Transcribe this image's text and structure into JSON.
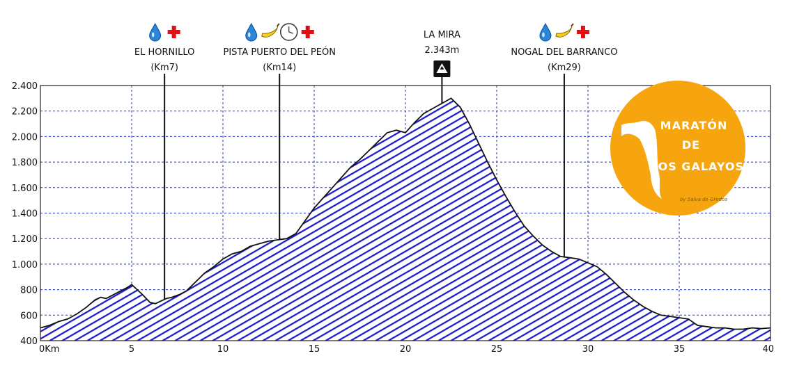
{
  "chart_data": {
    "type": "area",
    "title": "",
    "xlabel": "",
    "ylabel": "",
    "xlim": [
      0,
      40
    ],
    "ylim": [
      400,
      2400
    ],
    "grid": true,
    "x_ticks": [
      0,
      5,
      10,
      15,
      20,
      25,
      30,
      35,
      40
    ],
    "x_tick_labels": [
      "0Km",
      "5",
      "10",
      "15",
      "20",
      "25",
      "30",
      "35",
      "40"
    ],
    "y_ticks": [
      400,
      600,
      800,
      1000,
      1200,
      1400,
      1600,
      1800,
      2000,
      2200,
      2400
    ],
    "y_tick_labels": [
      "400",
      "600",
      "800",
      "1.000",
      "1.200",
      "1.400",
      "1.600",
      "1.800",
      "2.000",
      "2.200",
      "2.400"
    ],
    "fill_color": "#1a1acc",
    "series": [
      {
        "x": [
          0,
          0.5,
          1,
          1.5,
          2,
          2.5,
          3,
          3.3,
          3.6,
          4,
          4.4,
          4.8,
          5,
          5.3,
          5.6,
          6,
          6.3,
          6.6,
          6.9,
          7.2,
          7.6,
          8,
          8.5,
          9,
          9.5,
          10,
          10.5,
          11,
          11.5,
          12,
          12.5,
          13,
          13.5,
          14,
          14.5,
          15,
          15.5,
          16,
          16.5,
          17,
          17.5,
          18,
          18.5,
          19,
          19.5,
          20,
          20.5,
          21,
          21.5,
          22,
          22.5,
          23,
          23.5,
          24,
          24.5,
          25,
          25.5,
          26,
          26.5,
          27,
          27.5,
          28,
          28.5,
          29,
          29.5,
          30,
          30.5,
          31,
          31.5,
          32,
          32.5,
          33,
          33.5,
          34,
          34.5,
          35,
          35.5,
          36,
          36.5,
          37,
          37.5,
          38,
          38.5,
          39,
          39.5,
          40
        ],
        "y": [
          500,
          520,
          550,
          570,
          610,
          660,
          720,
          740,
          730,
          760,
          790,
          820,
          840,
          800,
          760,
          700,
          690,
          710,
          730,
          740,
          760,
          790,
          860,
          930,
          980,
          1040,
          1080,
          1100,
          1140,
          1160,
          1180,
          1190,
          1200,
          1240,
          1340,
          1440,
          1520,
          1600,
          1680,
          1760,
          1820,
          1890,
          1960,
          2030,
          2050,
          2030,
          2110,
          2180,
          2220,
          2260,
          2300,
          2230,
          2100,
          1950,
          1800,
          1660,
          1530,
          1410,
          1300,
          1220,
          1150,
          1100,
          1060,
          1050,
          1040,
          1010,
          980,
          920,
          850,
          780,
          720,
          670,
          630,
          600,
          590,
          580,
          570,
          520,
          510,
          500,
          500,
          490,
          490,
          500,
          495,
          500
        ]
      }
    ],
    "peak": {
      "name": "LA MIRA",
      "elevation_label": "2.343m",
      "km": 22
    }
  },
  "markers": [
    {
      "name": "EL HORNILLO",
      "km_label": "(Km7)",
      "km": 6.8,
      "icons": [
        "water-drop-icon",
        "red-cross-icon"
      ]
    },
    {
      "name": "PISTA PUERTO DEL PEÓN",
      "km_label": "(Km14)",
      "km": 13.1,
      "icons": [
        "water-drop-icon",
        "banana-icon",
        "clock-icon",
        "red-cross-icon"
      ]
    },
    {
      "name": "NOGAL DEL BARRANCO",
      "km_label": "(Km29)",
      "km": 28.7,
      "icons": [
        "water-drop-icon",
        "banana-icon",
        "red-cross-icon"
      ]
    }
  ],
  "logo": {
    "line1": "MARATÓN",
    "line2": "DE",
    "line3": "LOS GALAYOS",
    "credit": "by Salva de Gredos",
    "color": "#f6a50e"
  }
}
